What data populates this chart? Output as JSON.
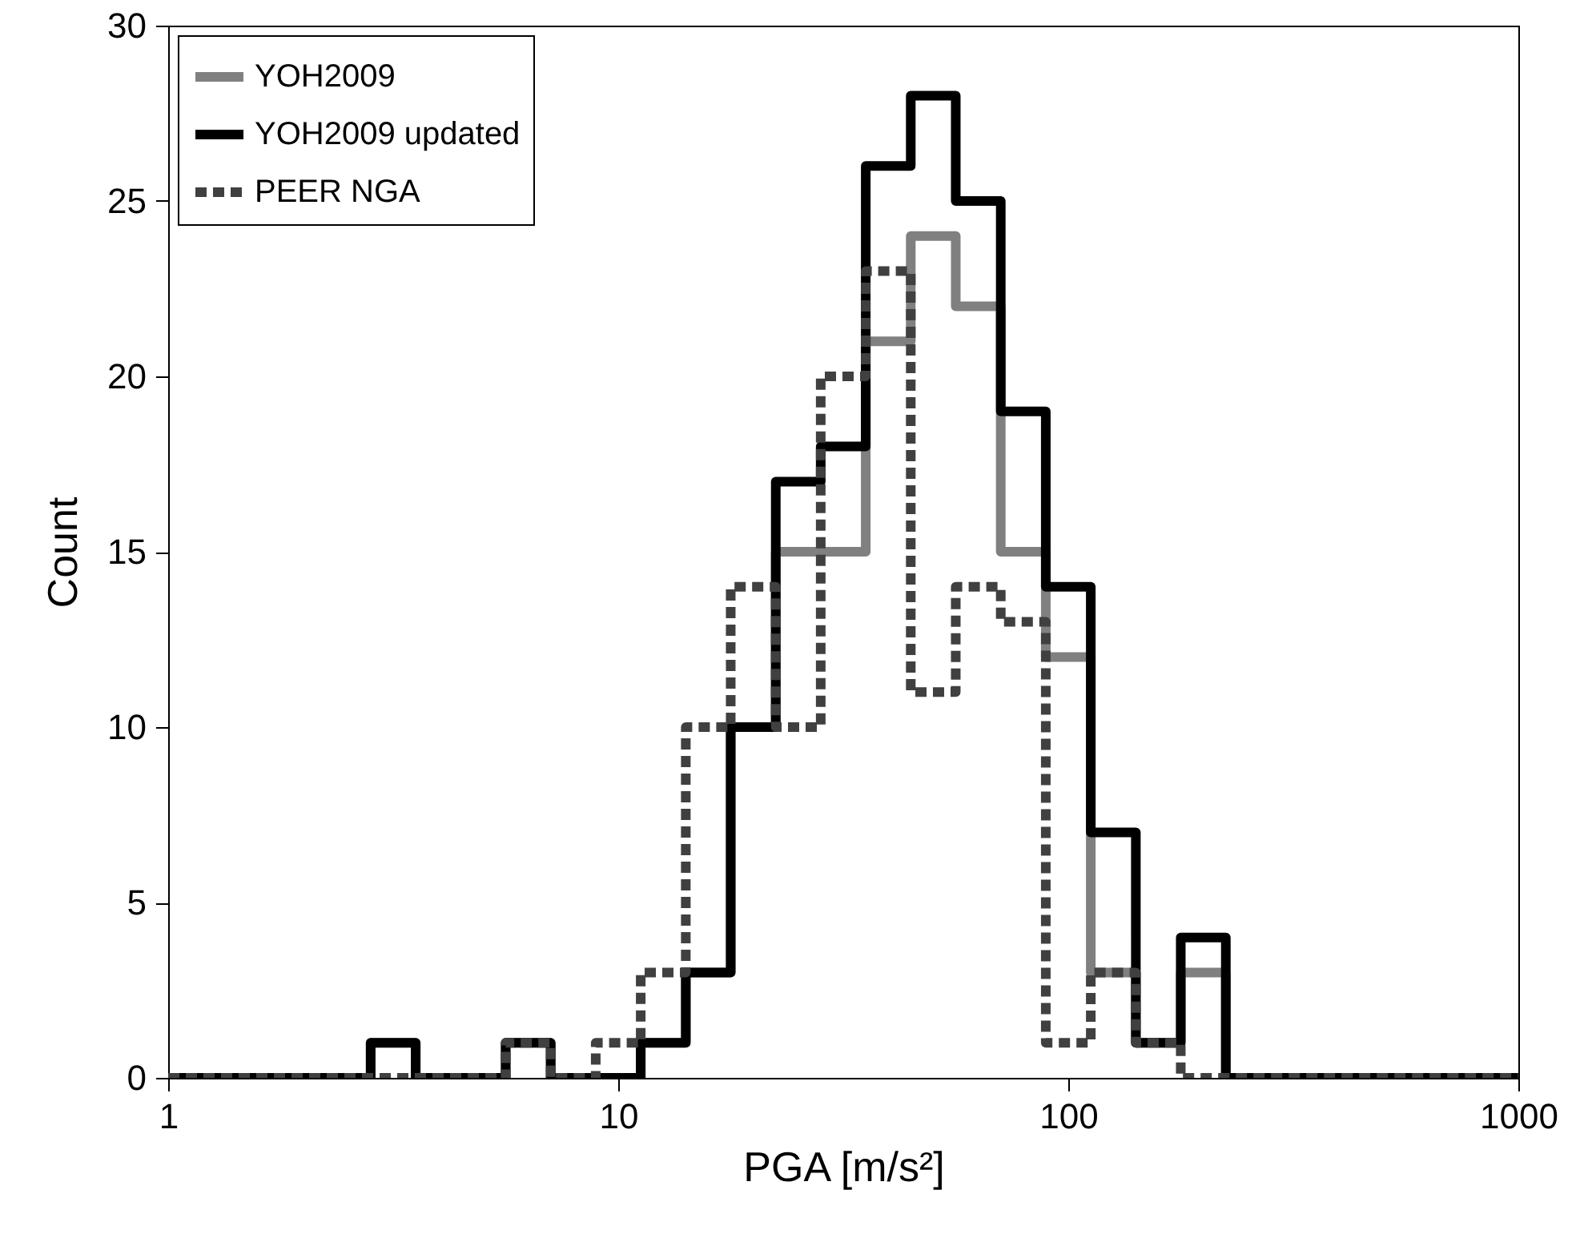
{
  "chart_data": {
    "type": "histogram",
    "xlabel": "PGA [m/s²]",
    "ylabel": "Count",
    "bins": [
      1,
      1.122,
      1.413,
      1.778,
      2.239,
      2.818,
      3.548,
      4.467,
      5.623,
      7.079,
      8.913,
      11.22,
      14.13,
      17.78,
      22.39,
      28.18,
      35.48,
      44.67,
      56.23,
      70.79,
      89.13,
      112.2,
      141.3,
      177.8,
      223.9,
      281.8,
      354.8,
      446.7,
      562.3,
      707.9,
      891.3,
      1000
    ],
    "series": [
      {
        "name": "YOH2009",
        "color": "#808080",
        "line_style": "solid",
        "values": [
          0,
          0,
          0,
          0,
          0,
          1,
          0,
          0,
          1,
          0,
          0,
          1,
          3,
          10,
          15,
          15,
          21,
          24,
          22,
          15,
          12,
          3,
          1,
          3,
          0,
          0,
          0,
          0,
          0,
          0,
          0
        ]
      },
      {
        "name": "YOH2009 updated",
        "color": "#000000",
        "line_style": "solid",
        "values": [
          0,
          0,
          0,
          0,
          0,
          1,
          0,
          0,
          1,
          0,
          0,
          1,
          3,
          10,
          17,
          18,
          26,
          28,
          25,
          19,
          14,
          7,
          1,
          4,
          0,
          0,
          0,
          0,
          0,
          0,
          0
        ]
      },
      {
        "name": "PEER NGA",
        "color": "#404040",
        "line_style": "dashed",
        "values": [
          0,
          0,
          0,
          0,
          0,
          0,
          0,
          0,
          1,
          0,
          1,
          3,
          10,
          14,
          10,
          20,
          23,
          11,
          14,
          13,
          1,
          3,
          1,
          0,
          0,
          0,
          0,
          0,
          0,
          0,
          0
        ]
      }
    ],
    "log": "x",
    "xlim": [
      1,
      1000
    ],
    "xticks": [
      1,
      10,
      100,
      1000
    ],
    "ylim": [
      0,
      30
    ],
    "yticks": [
      0,
      5,
      10,
      15,
      20,
      25,
      30
    ],
    "grid": false,
    "legend": "top left"
  }
}
